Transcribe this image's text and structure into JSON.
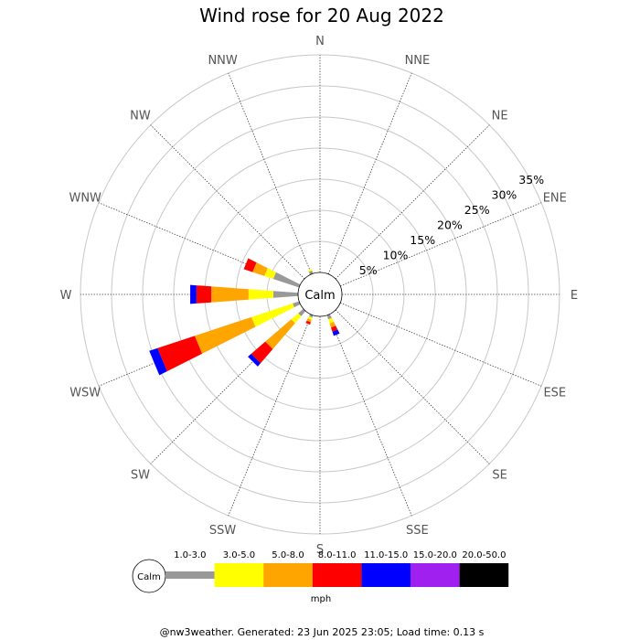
{
  "chart_data": {
    "type": "wind-rose",
    "title": "Wind rose for 20 Aug 2022",
    "directions": [
      "N",
      "NNE",
      "NE",
      "ENE",
      "E",
      "ESE",
      "SE",
      "SSE",
      "S",
      "SSW",
      "SW",
      "WSW",
      "W",
      "WNW",
      "NW",
      "NNW"
    ],
    "ring_labels": [
      "5%",
      "10%",
      "15%",
      "20%",
      "25%",
      "30%",
      "35%"
    ],
    "ring_values": [
      5,
      10,
      15,
      20,
      25,
      30,
      35
    ],
    "r_max": 35,
    "calm_label": "Calm",
    "speed_bins": [
      "1.0-3.0",
      "3.0-5.0",
      "5.0-8.0",
      "8.0-11.0",
      "11.0-15.0",
      "15.0-20.0",
      "20.0-50.0"
    ],
    "bin_colors": [
      "#999999",
      "#ffff00",
      "#ffa500",
      "#ff0000",
      "#0000ff",
      "#a020f0",
      "#000000"
    ],
    "unit": "mph",
    "series": [
      {
        "direction": "N",
        "values": [
          0,
          0,
          0,
          0,
          0,
          0,
          0
        ]
      },
      {
        "direction": "NNE",
        "values": [
          0,
          0,
          0,
          0,
          0,
          0,
          0
        ]
      },
      {
        "direction": "NE",
        "values": [
          0,
          0,
          0,
          0,
          0,
          0,
          0
        ]
      },
      {
        "direction": "ENE",
        "values": [
          0,
          0,
          0,
          0,
          0,
          0,
          0
        ]
      },
      {
        "direction": "E",
        "values": [
          0,
          0,
          0,
          0,
          0,
          0,
          0
        ]
      },
      {
        "direction": "ESE",
        "values": [
          0,
          0,
          0,
          0,
          0,
          0,
          0
        ]
      },
      {
        "direction": "SE",
        "values": [
          0,
          0,
          0,
          0,
          0,
          0,
          0
        ]
      },
      {
        "direction": "SSE",
        "values": [
          0.7,
          0.7,
          0.7,
          0.7,
          0.7,
          0,
          0
        ]
      },
      {
        "direction": "S",
        "values": [
          0,
          0,
          0,
          0,
          0,
          0,
          0
        ]
      },
      {
        "direction": "SSW",
        "values": [
          0.4,
          0.4,
          0.4,
          0.4,
          0,
          0,
          0
        ]
      },
      {
        "direction": "SW",
        "values": [
          1.1,
          1.5,
          5.5,
          3.0,
          0.7,
          0,
          0
        ]
      },
      {
        "direction": "WSW",
        "values": [
          1.1,
          7.0,
          9.6,
          6.3,
          1.4,
          0,
          0
        ]
      },
      {
        "direction": "W",
        "values": [
          4.0,
          4.0,
          6.0,
          2.4,
          1.0,
          0,
          0
        ]
      },
      {
        "direction": "WNW",
        "values": [
          4.4,
          1.5,
          2.0,
          1.5,
          0,
          0,
          0
        ]
      },
      {
        "direction": "NW",
        "values": [
          0,
          0,
          0,
          0,
          0,
          0,
          0
        ]
      },
      {
        "direction": "NNW",
        "values": [
          0.5,
          0.3,
          0,
          0,
          0,
          0,
          0
        ]
      }
    ]
  },
  "footer": "@nw3weather. Generated: 23 Jun 2025 23:05; Load time: 0.13 s"
}
